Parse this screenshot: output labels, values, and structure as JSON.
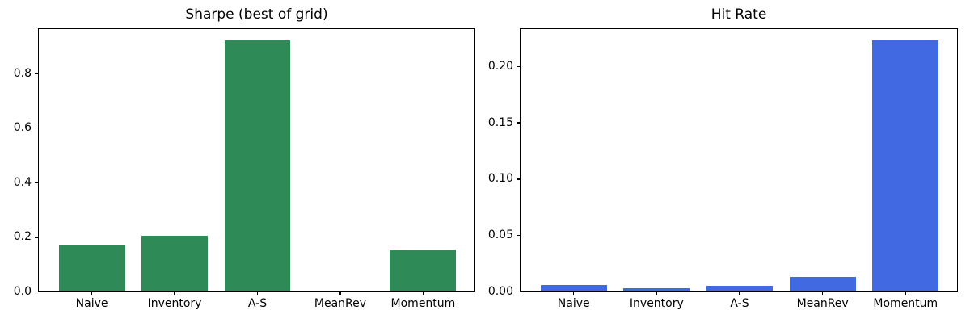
{
  "figure": {
    "background": "#ffffff",
    "text_color": "#000000"
  },
  "chart_data": [
    {
      "type": "bar",
      "title": "Sharpe (best of grid)",
      "categories": [
        "Naive",
        "Inventory",
        "A-S",
        "MeanRev",
        "Momentum"
      ],
      "values": [
        0.167,
        0.202,
        0.919,
        0.0,
        0.151
      ],
      "bar_color": "#2e8b57",
      "ytick_values": [
        0.0,
        0.2,
        0.4,
        0.6,
        0.8
      ],
      "ytick_labels": [
        "0.0",
        "0.2",
        "0.4",
        "0.6",
        "0.8"
      ],
      "ylim": [
        0,
        0.965
      ],
      "xlim": [
        -0.64,
        4.64
      ],
      "bar_width": 0.8,
      "grid": false,
      "legend": "none",
      "xlabel": "",
      "ylabel": ""
    },
    {
      "type": "bar",
      "title": "Hit Rate",
      "categories": [
        "Naive",
        "Inventory",
        "A-S",
        "MeanRev",
        "Momentum"
      ],
      "values": [
        0.005,
        0.002,
        0.004,
        0.012,
        0.222
      ],
      "bar_color": "#4169e1",
      "ytick_values": [
        0.0,
        0.05,
        0.1,
        0.15,
        0.2
      ],
      "ytick_labels": [
        "0.00",
        "0.05",
        "0.10",
        "0.15",
        "0.20"
      ],
      "ylim": [
        0,
        0.2335
      ],
      "xlim": [
        -0.64,
        4.64
      ],
      "bar_width": 0.8,
      "grid": false,
      "legend": "none",
      "xlabel": "",
      "ylabel": ""
    }
  ]
}
